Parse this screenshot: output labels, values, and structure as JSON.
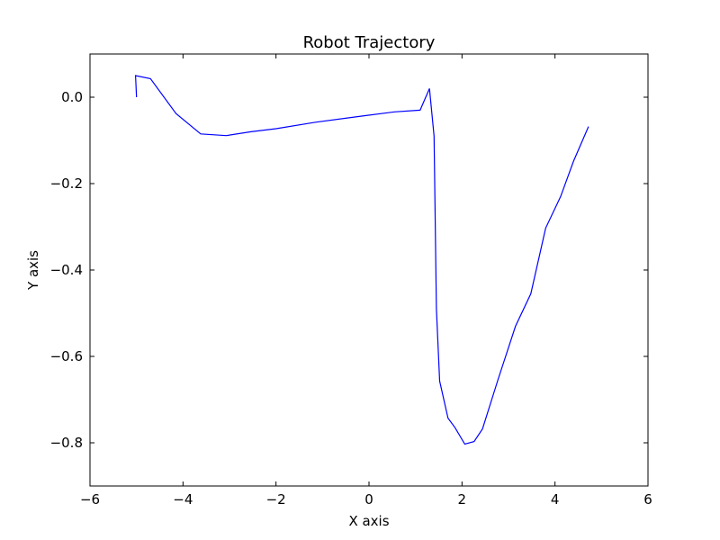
{
  "chart_data": {
    "type": "line",
    "title": "Robot Trajectory",
    "xlabel": "X axis",
    "ylabel": "Y axis",
    "xlim": [
      -6,
      6
    ],
    "ylim": [
      -0.9,
      0.1
    ],
    "xticks": [
      -6,
      -4,
      -2,
      0,
      2,
      4,
      6
    ],
    "xtick_labels": [
      "−6",
      "−4",
      "−2",
      "0",
      "2",
      "4",
      "6"
    ],
    "yticks": [
      0.0,
      -0.2,
      -0.4,
      -0.6,
      -0.8
    ],
    "ytick_labels": [
      "0.0",
      "−0.2",
      "−0.4",
      "−0.6",
      "−0.8"
    ],
    "grid": false,
    "series": [
      {
        "color": "#0000ff",
        "x": [
          -5.0,
          -5.02,
          -4.7,
          -4.15,
          -3.62,
          -3.07,
          -2.54,
          -2.0,
          -1.15,
          -0.1,
          0.55,
          1.1,
          1.3,
          1.4,
          1.45,
          1.52,
          1.7,
          1.85,
          2.06,
          2.26,
          2.44,
          2.78,
          3.15,
          3.48,
          3.8,
          4.12,
          4.4,
          4.72
        ],
        "y": [
          0.0,
          0.05,
          0.043,
          -0.038,
          -0.085,
          -0.089,
          -0.08,
          -0.073,
          -0.058,
          -0.043,
          -0.034,
          -0.03,
          0.02,
          -0.09,
          -0.49,
          -0.657,
          -0.743,
          -0.765,
          -0.803,
          -0.797,
          -0.768,
          -0.652,
          -0.53,
          -0.455,
          -0.303,
          -0.23,
          -0.148,
          -0.068
        ]
      }
    ]
  }
}
